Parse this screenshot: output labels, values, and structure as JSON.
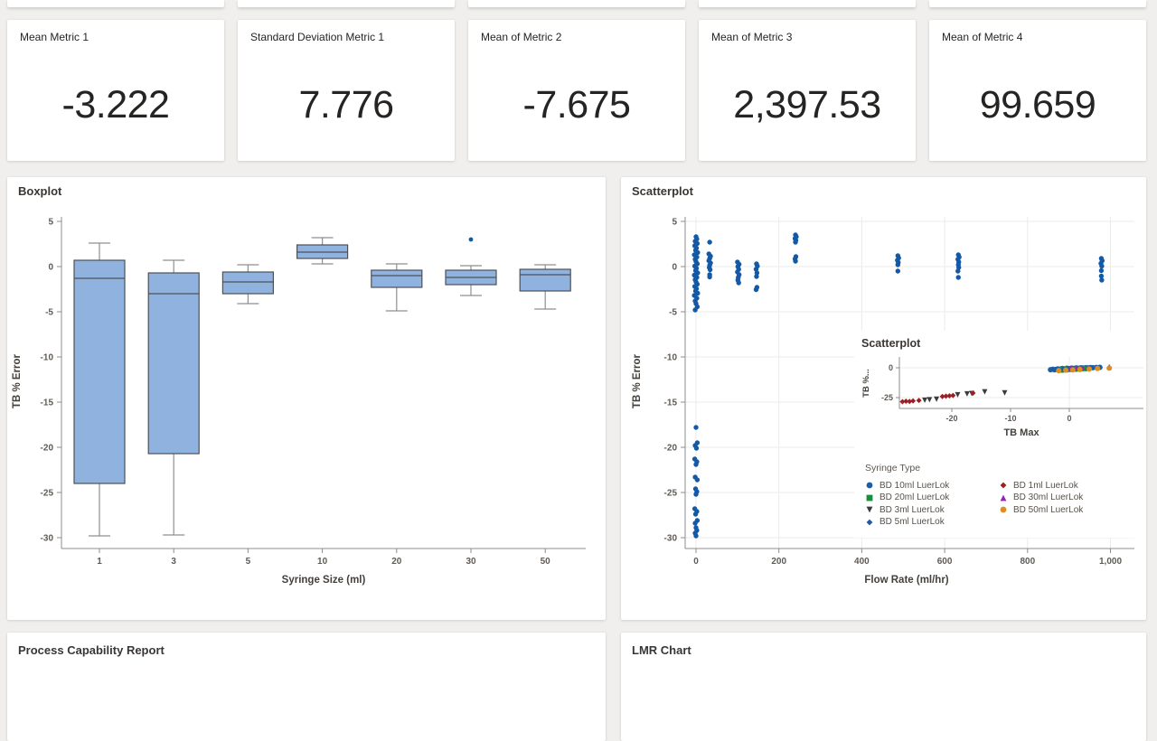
{
  "colors": {
    "page_bg": "#f0efed",
    "card_bg": "#ffffff",
    "accent_blue": "#1459a5",
    "whisker": "#8f8f8f",
    "axis": "#8c8c8c",
    "grid": "#ebebe9",
    "tick_text": "#5f5a54",
    "label_text": "#45403a"
  },
  "metrics": [
    {
      "title": "Mean Metric 1",
      "value": "-3.222"
    },
    {
      "title": "Standard Deviation Metric 1",
      "value": "7.776"
    },
    {
      "title": "Mean of Metric 2",
      "value": "-7.675"
    },
    {
      "title": "Mean of Metric 3",
      "value": "2,397.53"
    },
    {
      "title": "Mean of Metric 4",
      "value": "99.659"
    }
  ],
  "bottom_cards": [
    {
      "title": "Process Capability Report"
    },
    {
      "title": "LMR Chart"
    }
  ],
  "chart_data": [
    {
      "id": "boxplot",
      "type": "boxplot",
      "title": "Boxplot",
      "xlabel": "Syringe Size (ml)",
      "ylabel": "TB % Error",
      "ylim": [
        -32,
        5
      ],
      "yticks": [
        5,
        0,
        -5,
        -10,
        -15,
        -20,
        -25,
        -30
      ],
      "grid": false,
      "box_fill": "#8fb3de",
      "box_stroke": "#4c5158",
      "categories": [
        "1",
        "3",
        "5",
        "10",
        "20",
        "30",
        "50"
      ],
      "boxes": [
        {
          "low": -29.8,
          "q1": -24.0,
          "median": -1.3,
          "q3": 0.7,
          "high": 2.6,
          "outliers": []
        },
        {
          "low": -29.7,
          "q1": -20.7,
          "median": -3.0,
          "q3": -0.7,
          "high": 0.7,
          "outliers": []
        },
        {
          "low": -4.1,
          "q1": -3.0,
          "median": -1.7,
          "q3": -0.6,
          "high": 0.2,
          "outliers": []
        },
        {
          "low": 0.3,
          "q1": 0.9,
          "median": 1.6,
          "q3": 2.4,
          "high": 3.2,
          "outliers": []
        },
        {
          "low": -4.9,
          "q1": -2.3,
          "median": -1.0,
          "q3": -0.4,
          "high": 0.3,
          "outliers": []
        },
        {
          "low": -3.2,
          "q1": -2.0,
          "median": -1.2,
          "q3": -0.4,
          "high": 0.1,
          "outliers": [
            3.0
          ]
        },
        {
          "low": -4.7,
          "q1": -2.7,
          "median": -0.9,
          "q3": -0.3,
          "high": 0.2,
          "outliers": []
        }
      ]
    },
    {
      "id": "scatter-main",
      "type": "scatter",
      "title": "Scatterplot",
      "xlabel": "Flow Rate (ml/hr)",
      "ylabel": "TB % Error",
      "xlim": [
        -40,
        1080
      ],
      "ylim": [
        -32,
        5
      ],
      "xticks": [
        0,
        200,
        400,
        600,
        800,
        1000
      ],
      "xtick_labels": [
        "0",
        "200",
        "400",
        "600",
        "800",
        "1,000"
      ],
      "yticks": [
        5,
        0,
        -5,
        -10,
        -15,
        -20,
        -25,
        -30
      ],
      "grid": true,
      "point_color": "#1459a5",
      "points": [
        [
          0,
          3.3
        ],
        [
          2,
          3.05
        ],
        [
          -2,
          2.8
        ],
        [
          3,
          2.55
        ],
        [
          -3,
          2.3
        ],
        [
          1,
          2.05
        ],
        [
          -1,
          1.8
        ],
        [
          4,
          1.55
        ],
        [
          -4,
          1.3
        ],
        [
          2,
          1.05
        ],
        [
          -2,
          0.8
        ],
        [
          0,
          0.55
        ],
        [
          3,
          0.3
        ],
        [
          -3,
          0.05
        ],
        [
          1,
          -0.2
        ],
        [
          -1,
          -0.45
        ],
        [
          4,
          -0.7
        ],
        [
          -4,
          -0.95
        ],
        [
          2,
          -1.2
        ],
        [
          -2,
          -1.45
        ],
        [
          0,
          -1.7
        ],
        [
          3,
          -1.95
        ],
        [
          -3,
          -2.2
        ],
        [
          1,
          -2.45
        ],
        [
          -1,
          -2.7
        ],
        [
          4,
          -2.95
        ],
        [
          -4,
          -3.2
        ],
        [
          2,
          -3.5
        ],
        [
          -2,
          -3.8
        ],
        [
          0,
          -4.1
        ],
        [
          3,
          -4.45
        ],
        [
          -2,
          -4.8
        ],
        [
          0,
          -17.8
        ],
        [
          3,
          -19.5
        ],
        [
          -2,
          -19.8
        ],
        [
          1,
          -20.1
        ],
        [
          -3,
          -21.3
        ],
        [
          2,
          -21.6
        ],
        [
          0,
          -21.9
        ],
        [
          -2,
          -23.3
        ],
        [
          3,
          -23.6
        ],
        [
          -1,
          -24.6
        ],
        [
          2,
          -24.9
        ],
        [
          0,
          -25.2
        ],
        [
          -3,
          -26.8
        ],
        [
          2,
          -27.1
        ],
        [
          -1,
          -27.4
        ],
        [
          3,
          -28.1
        ],
        [
          -2,
          -28.4
        ],
        [
          0,
          -28.9
        ],
        [
          2,
          -29.2
        ],
        [
          -2,
          -29.5
        ],
        [
          0,
          -29.8
        ],
        [
          33,
          2.7
        ],
        [
          31,
          1.4
        ],
        [
          35,
          1.15
        ],
        [
          33,
          0.9
        ],
        [
          31,
          0.65
        ],
        [
          35,
          0.4
        ],
        [
          33,
          0.15
        ],
        [
          32,
          -0.1
        ],
        [
          34,
          -0.35
        ],
        [
          33,
          -0.9
        ],
        [
          33,
          -1.15
        ],
        [
          100,
          0.5
        ],
        [
          104,
          0.25
        ],
        [
          101,
          0
        ],
        [
          103,
          -0.3
        ],
        [
          100,
          -0.6
        ],
        [
          104,
          -0.9
        ],
        [
          102,
          -1.2
        ],
        [
          101,
          -1.5
        ],
        [
          103,
          -1.8
        ],
        [
          146,
          0.3
        ],
        [
          148,
          0.05
        ],
        [
          145,
          -0.3
        ],
        [
          147,
          -0.7
        ],
        [
          146,
          -1.1
        ],
        [
          147,
          -2.3
        ],
        [
          145,
          -2.55
        ],
        [
          240,
          3.5
        ],
        [
          242,
          3.3
        ],
        [
          239,
          3.1
        ],
        [
          241,
          2.9
        ],
        [
          240,
          2.7
        ],
        [
          241,
          1.1
        ],
        [
          239,
          0.85
        ],
        [
          240,
          0.6
        ],
        [
          487,
          1.2
        ],
        [
          489,
          0.95
        ],
        [
          486,
          0.7
        ],
        [
          488,
          0.45
        ],
        [
          487,
          0.2
        ],
        [
          487,
          -0.5
        ],
        [
          633,
          1.3
        ],
        [
          635,
          1.05
        ],
        [
          632,
          0.8
        ],
        [
          634,
          0.5
        ],
        [
          633,
          0.2
        ],
        [
          634,
          -0.1
        ],
        [
          632,
          -0.5
        ],
        [
          633,
          -1.2
        ],
        [
          978,
          0.9
        ],
        [
          980,
          0.65
        ],
        [
          977,
          0.35
        ],
        [
          979,
          0.05
        ],
        [
          978,
          -0.45
        ],
        [
          978,
          -1.05
        ],
        [
          979,
          -1.5
        ]
      ]
    },
    {
      "id": "scatter-inset",
      "type": "scatter",
      "title": "Scatterplot",
      "xlabel": "TB Max",
      "ylabel": "TB %...",
      "xlim": [
        -30,
        10
      ],
      "ylim": [
        -33,
        8
      ],
      "xticks": [
        -20,
        -10,
        0
      ],
      "yticks": [
        0,
        -25
      ],
      "grid": true,
      "legend_title": "Syringe Type",
      "legend_columns": [
        [
          0,
          1,
          2,
          3
        ],
        [
          4,
          5,
          6
        ]
      ],
      "series": [
        {
          "name": "BD 10ml LuerLok",
          "marker": "circle",
          "color": "#1a5ea8",
          "points": [
            [
              -3.2,
              -1.6
            ],
            [
              -2.8,
              -1.2
            ],
            [
              -2.4,
              -1.5
            ],
            [
              -2,
              -0.9
            ],
            [
              -1.6,
              -1.1
            ],
            [
              -1.2,
              -0.6
            ],
            [
              -0.8,
              -0.9
            ],
            [
              -0.4,
              -0.4
            ],
            [
              0,
              -0.7
            ],
            [
              0.4,
              -0.3
            ],
            [
              0.8,
              -0.5
            ],
            [
              1.2,
              -0.1
            ],
            [
              1.6,
              -0.4
            ],
            [
              2,
              0
            ],
            [
              2.4,
              -0.2
            ],
            [
              2.8,
              0.1
            ],
            [
              3.2,
              -0.1
            ],
            [
              3.6,
              0.2
            ],
            [
              4,
              0.1
            ],
            [
              4.6,
              0.3
            ],
            [
              5.2,
              0.4
            ]
          ]
        },
        {
          "name": "BD 20ml LuerLok",
          "marker": "square",
          "color": "#15913a",
          "points": [
            [
              -1.4,
              -1.9
            ],
            [
              -0.6,
              -1.6
            ],
            [
              0.2,
              -1.3
            ],
            [
              1,
              -1.1
            ],
            [
              1.8,
              -0.8
            ],
            [
              2.6,
              -0.6
            ]
          ]
        },
        {
          "name": "BD 3ml LuerLok",
          "marker": "triangle-down",
          "color": "#3b3b3b",
          "points": [
            [
              -24.6,
              -27.2
            ],
            [
              -23.8,
              -26.8
            ],
            [
              -22.6,
              -26.3
            ],
            [
              -19,
              -22.6
            ],
            [
              -17.4,
              -21.9
            ],
            [
              -16.6,
              -21.6
            ],
            [
              -14.4,
              -20.2
            ],
            [
              -11,
              -21
            ]
          ]
        },
        {
          "name": "BD 5ml LuerLok",
          "marker": "diamond",
          "color": "#2257a8",
          "points": [
            [
              -2.6,
              -1.9
            ],
            [
              -1.8,
              -1.5
            ],
            [
              -1,
              -1.2
            ],
            [
              -0.2,
              -1
            ],
            [
              0.6,
              -0.7
            ]
          ]
        },
        {
          "name": "BD 1ml LuerLok",
          "marker": "diamond",
          "color": "#9c1f24",
          "points": [
            [
              -28.4,
              -28.4
            ],
            [
              -27.8,
              -28
            ],
            [
              -27.2,
              -28.2
            ],
            [
              -26.6,
              -27.7
            ],
            [
              -25.6,
              -27.4
            ],
            [
              -21.6,
              -24.1
            ],
            [
              -21,
              -23.8
            ],
            [
              -20.4,
              -23.5
            ],
            [
              -19.8,
              -23.2
            ],
            [
              -16.4,
              -21.2
            ]
          ]
        },
        {
          "name": "BD 30ml LuerLok",
          "marker": "triangle-up",
          "color": "#9a1fbf",
          "points": [
            [
              0.2,
              -0.4
            ],
            [
              1.2,
              -0.2
            ],
            [
              2.2,
              0
            ],
            [
              3.2,
              0.2
            ],
            [
              6.8,
              0.9
            ]
          ]
        },
        {
          "name": "BD 50ml LuerLok",
          "marker": "circle",
          "color": "#dd8f1e",
          "points": [
            [
              -1.8,
              -2.4
            ],
            [
              -0.6,
              -2
            ],
            [
              0.6,
              -1.7
            ],
            [
              1.8,
              -1.4
            ],
            [
              3.4,
              -1
            ],
            [
              4.8,
              -0.6
            ],
            [
              6.8,
              -0.3
            ]
          ]
        }
      ]
    }
  ]
}
